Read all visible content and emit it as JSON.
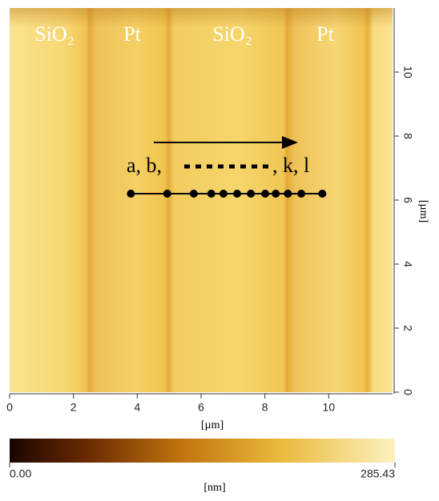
{
  "chart_data": {
    "type": "scatter",
    "region_labels": [
      "SiO₂",
      "Pt",
      "SiO₂",
      "Pt"
    ],
    "annotations": [
      "a, b,",
      ", k, l"
    ],
    "x_label": "[µm]",
    "y_label": "[µm]",
    "xlim": [
      0,
      12
    ],
    "ylim": [
      0,
      12
    ],
    "xticks": [
      0,
      2,
      4,
      6,
      8,
      10
    ],
    "yticks": [
      0,
      2,
      4,
      6,
      8,
      10
    ],
    "x": [
      3.8,
      4.94,
      5.77,
      6.32,
      6.7,
      7.13,
      7.56,
      8.01,
      8.34,
      8.72,
      9.14,
      9.8
    ],
    "values": [
      6.2,
      6.2,
      6.2,
      6.2,
      6.2,
      6.2,
      6.2,
      6.2,
      6.2,
      6.2,
      6.2,
      6.2
    ],
    "color": "#000000",
    "colorbar": {
      "lim": [
        0,
        285.43
      ],
      "ticks": [
        {
          "value": 0,
          "label": "0.00"
        },
        285.43
      ],
      "label": "[nm]"
    }
  }
}
